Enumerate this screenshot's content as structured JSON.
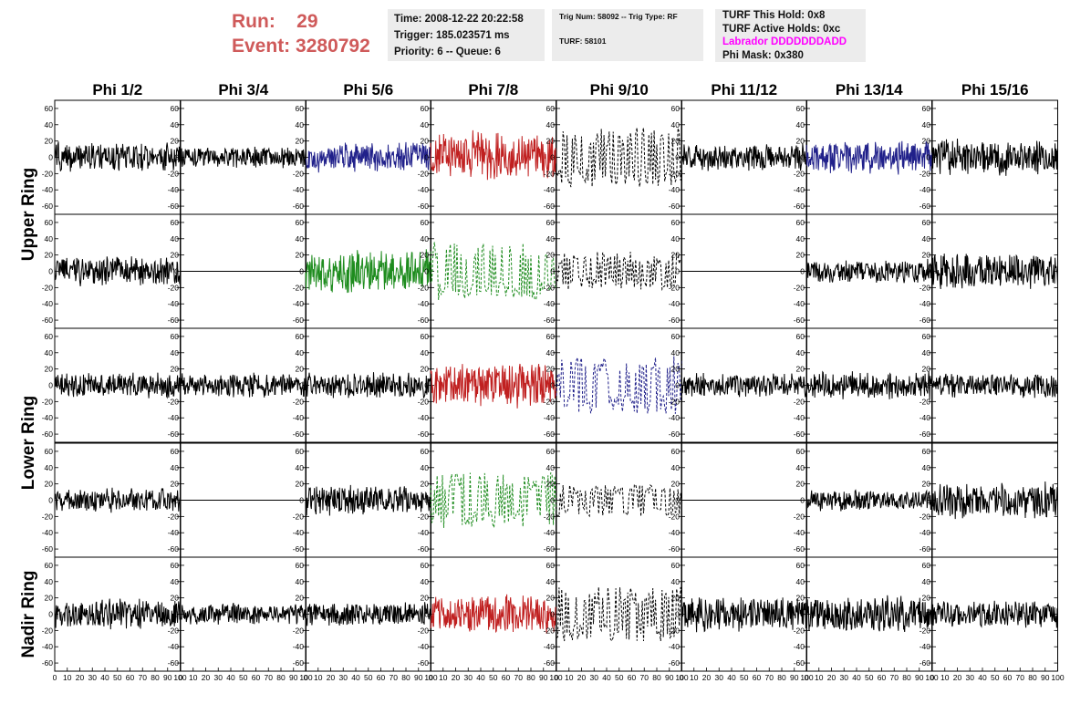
{
  "header": {
    "run_label": "Run:",
    "run_value": "29",
    "event_label": "Event:",
    "event_value": "3280792",
    "time": "Time: 2008-12-22 20:22:58",
    "trigger": "Trigger: 185.023571 ms",
    "priority": "Priority: 6 -- Queue: 6",
    "trig_num": "Trig Num: 58092 -- Trig Type: RF",
    "turf": "TURF: 58101",
    "turf_hold": "TURF This Hold: 0x8",
    "turf_active": "TURF Active Holds: 0xc",
    "labrador": "Labrador DDDDDDDADD",
    "phi_mask": "Phi Mask: 0x380"
  },
  "colors": {
    "header_red": "#cf5a5a",
    "labrador_magenta": "#ff00ff",
    "trace_black": "#000000",
    "trace_blue": "#20208a",
    "trace_red": "#c02020",
    "trace_green": "#1e8c1e"
  },
  "chart_data": {
    "type": "line",
    "columns": [
      "Phi 1/2",
      "Phi 3/4",
      "Phi 5/6",
      "Phi 7/8",
      "Phi 9/10",
      "Phi 11/12",
      "Phi 13/14",
      "Phi 15/16"
    ],
    "ring_labels": [
      "Upper Ring",
      "Lower Ring",
      "Nadir Ring"
    ],
    "x_ticks": [
      "0",
      "10",
      "20",
      "30",
      "40",
      "50",
      "60",
      "70",
      "80",
      "90",
      "100"
    ],
    "y_ticks": [
      "-60",
      "-40",
      "-20",
      "0",
      "20",
      "40",
      "60"
    ],
    "xlim": [
      0,
      100
    ],
    "ylim": [
      -70,
      70
    ],
    "panels": [
      [
        {
          "style": "black",
          "amp": 20
        },
        {
          "style": "black",
          "amp": 14
        },
        {
          "style": "blue",
          "amp": 20
        },
        {
          "style": "red",
          "amp": 34
        },
        {
          "style": "black-dashed",
          "amp": 38
        },
        {
          "style": "black",
          "amp": 18
        },
        {
          "style": "blue",
          "amp": 22
        },
        {
          "style": "black",
          "amp": 24
        }
      ],
      [
        {
          "style": "black",
          "amp": 20
        },
        {
          "style": "flat",
          "amp": 0
        },
        {
          "style": "green",
          "amp": 28
        },
        {
          "style": "green-dashed",
          "amp": 36
        },
        {
          "style": "black-dashed",
          "amp": 24
        },
        {
          "style": "flat",
          "amp": 0
        },
        {
          "style": "black",
          "amp": 16
        },
        {
          "style": "black",
          "amp": 24
        }
      ],
      [
        {
          "style": "black",
          "amp": 16
        },
        {
          "style": "black",
          "amp": 16
        },
        {
          "style": "black",
          "amp": 18
        },
        {
          "style": "red",
          "amp": 30
        },
        {
          "style": "blue-dashed",
          "amp": 36
        },
        {
          "style": "black",
          "amp": 16
        },
        {
          "style": "black",
          "amp": 18
        },
        {
          "style": "black",
          "amp": 16
        }
      ],
      [
        {
          "style": "black",
          "amp": 16
        },
        {
          "style": "flat",
          "amp": 0
        },
        {
          "style": "black",
          "amp": 20
        },
        {
          "style": "green-dashed",
          "amp": 34
        },
        {
          "style": "black-dashed",
          "amp": 20
        },
        {
          "style": "flat",
          "amp": 0
        },
        {
          "style": "black",
          "amp": 14
        },
        {
          "style": "black",
          "amp": 24
        }
      ],
      [
        {
          "style": "black",
          "amp": 20
        },
        {
          "style": "black",
          "amp": 14
        },
        {
          "style": "black",
          "amp": 16
        },
        {
          "style": "red",
          "amp": 26
        },
        {
          "style": "black-dashed",
          "amp": 34
        },
        {
          "style": "black",
          "amp": 24
        },
        {
          "style": "black",
          "amp": 24
        },
        {
          "style": "black",
          "amp": 18
        }
      ]
    ]
  }
}
